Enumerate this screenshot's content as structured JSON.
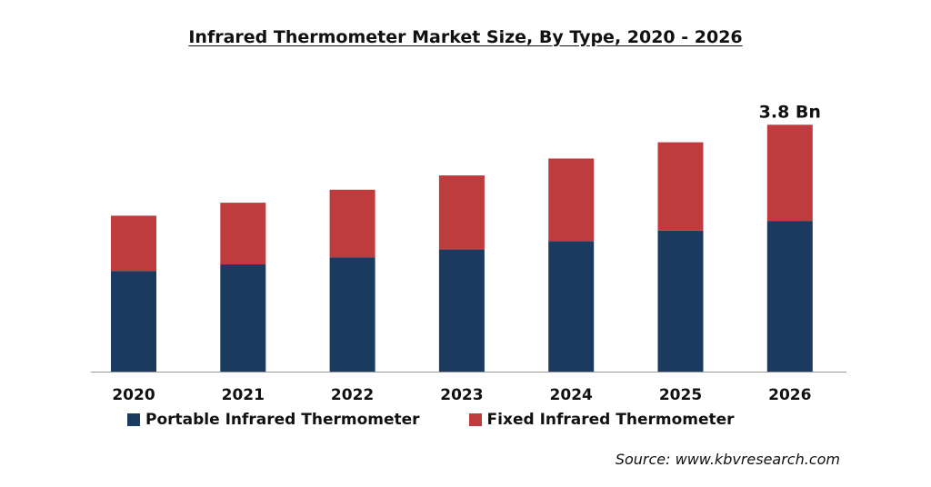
{
  "title": "Infrared Thermometer Market Size, By Type, 2020 - 2026",
  "source": "Source: www.kbvresearch.com",
  "colors": {
    "portable": "#1b3a5f",
    "fixed": "#be3b3e",
    "axis": "#9a9a9a"
  },
  "legend": {
    "portable": "Portable Infrared Thermometer",
    "fixed": "Fixed Infrared Thermometer"
  },
  "chart_data": {
    "type": "bar",
    "stacked": true,
    "categories": [
      "2020",
      "2021",
      "2022",
      "2023",
      "2024",
      "2025",
      "2026"
    ],
    "series": [
      {
        "name": "Portable Infrared Thermometer",
        "values": [
          1.55,
          1.65,
          1.76,
          1.88,
          2.01,
          2.17,
          2.32
        ]
      },
      {
        "name": "Fixed Infrared Thermometer",
        "values": [
          0.85,
          0.95,
          1.04,
          1.14,
          1.27,
          1.36,
          1.48
        ]
      }
    ],
    "ylim": [
      0,
      4
    ],
    "grid": false,
    "legend_position": "bottom",
    "annotations": [
      {
        "category": "2026",
        "text": "3.8 Bn"
      }
    ]
  }
}
